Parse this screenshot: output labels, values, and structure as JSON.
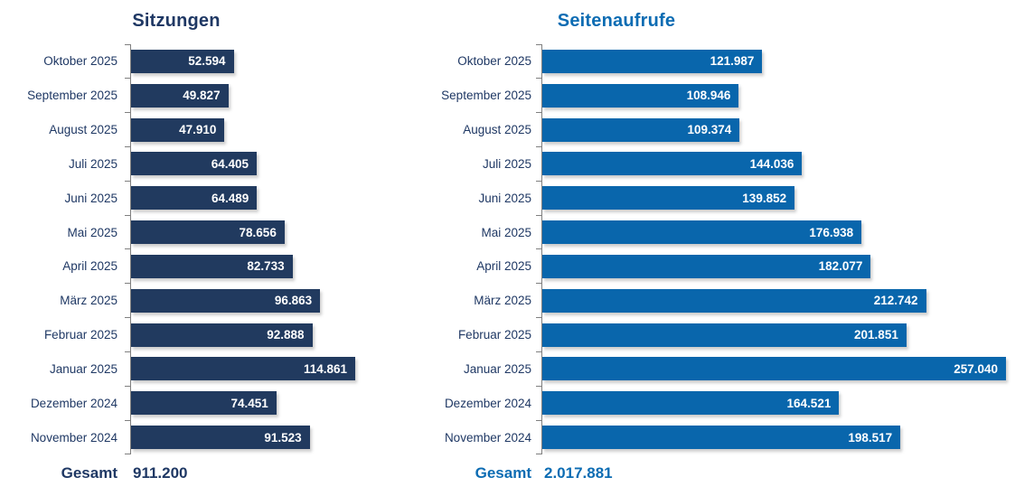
{
  "chart_data": [
    {
      "type": "bar",
      "orientation": "horizontal",
      "title": "Sitzungen",
      "categories": [
        "Oktober 2025",
        "September 2025",
        "August 2025",
        "Juli 2025",
        "Juni 2025",
        "Mai 2025",
        "April 2025",
        "März 2025",
        "Februar 2025",
        "Januar 2025",
        "Dezember 2024",
        "November 2024"
      ],
      "values": [
        52594,
        49827,
        47910,
        64405,
        64489,
        78656,
        82733,
        96863,
        92888,
        114861,
        74451,
        91523
      ],
      "value_labels": [
        "52.594",
        "49.827",
        "47.910",
        "64.405",
        "64.489",
        "78.656",
        "82.733",
        "96.863",
        "92.888",
        "114.861",
        "74.451",
        "91.523"
      ],
      "total_label": "Gesamt",
      "total_value_label": "911.200",
      "total_value": 911200,
      "xlim": [
        0,
        114861
      ],
      "grid": false,
      "legend": false,
      "bar_color": "#213A5F",
      "title_color": "#1F3864",
      "label_color": "#1F3864",
      "value_label_color": "#FFFFFF",
      "axis_color": "#7F7F7F"
    },
    {
      "type": "bar",
      "orientation": "horizontal",
      "title": "Seitenaufrufe",
      "categories": [
        "Oktober 2025",
        "September 2025",
        "August 2025",
        "Juli 2025",
        "Juni 2025",
        "Mai 2025",
        "April 2025",
        "März 2025",
        "Februar 2025",
        "Januar 2025",
        "Dezember 2024",
        "November 2024"
      ],
      "values": [
        121987,
        108946,
        109374,
        144036,
        139852,
        176938,
        182077,
        212742,
        201851,
        257040,
        164521,
        198517
      ],
      "value_labels": [
        "121.987",
        "108.946",
        "109.374",
        "144.036",
        "139.852",
        "176.938",
        "182.077",
        "212.742",
        "201.851",
        "257.040",
        "164.521",
        "198.517"
      ],
      "total_label": "Gesamt",
      "total_value_label": "2.017.881",
      "total_value": 2017881,
      "xlim": [
        0,
        257040
      ],
      "grid": false,
      "legend": false,
      "bar_color": "#0966AC",
      "title_color": "#0C6CB3",
      "label_color": "#1F3864",
      "value_label_color": "#FFFFFF",
      "axis_color": "#7F7F7F"
    }
  ]
}
